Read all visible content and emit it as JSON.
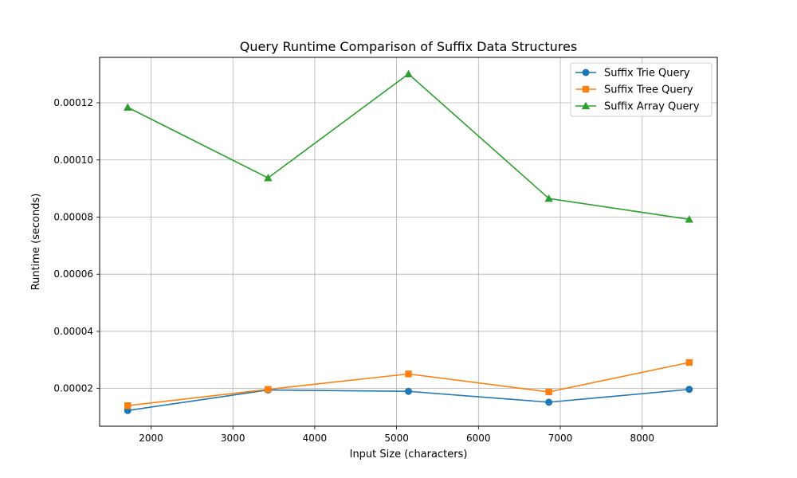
{
  "chart_data": {
    "type": "line",
    "title": "Query Runtime Comparison of Suffix Data Structures",
    "xlabel": "Input Size (characters)",
    "ylabel": "Runtime (seconds)",
    "x": [
      1715,
      3430,
      5145,
      6860,
      8575
    ],
    "xlim": [
      1372,
      8918
    ],
    "ylim": [
      6.8e-06,
      0.0001359
    ],
    "x_ticks": [
      2000,
      3000,
      4000,
      5000,
      6000,
      7000,
      8000
    ],
    "x_tick_labels": [
      "2000",
      "3000",
      "4000",
      "5000",
      "6000",
      "7000",
      "8000"
    ],
    "y_ticks": [
      2e-05,
      4e-05,
      6e-05,
      8e-05,
      0.0001,
      0.00012
    ],
    "y_tick_labels": [
      "0.00002",
      "0.00004",
      "0.00006",
      "0.00008",
      "0.00010",
      "0.00012"
    ],
    "grid": true,
    "legend_position": "top-right",
    "series": [
      {
        "name": "Suffix Trie Query",
        "marker": "circle",
        "color": "#1f77b4",
        "values": [
          1.23e-05,
          1.95e-05,
          1.9e-05,
          1.52e-05,
          1.97e-05
        ]
      },
      {
        "name": "Suffix Tree Query",
        "marker": "square",
        "color": "#ff7f0e",
        "values": [
          1.4e-05,
          1.97e-05,
          2.51e-05,
          1.88e-05,
          2.91e-05
        ]
      },
      {
        "name": "Suffix Array Query",
        "marker": "triangle",
        "color": "#2ca02c",
        "values": [
          0.0001184,
          9.37e-05,
          0.0001301,
          8.65e-05,
          7.92e-05
        ]
      }
    ]
  }
}
